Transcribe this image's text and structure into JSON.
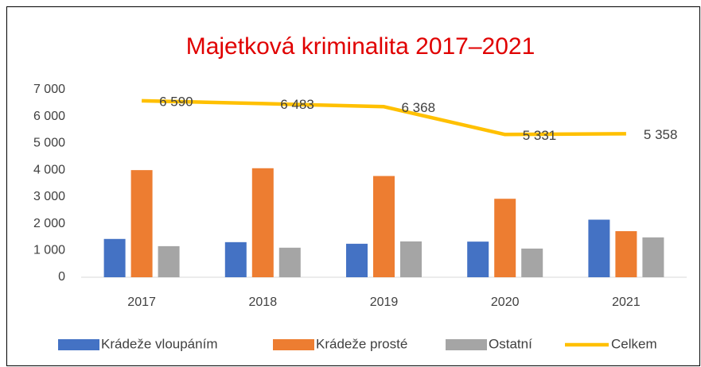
{
  "chart_data": {
    "type": "bar",
    "title": "Majetková kriminalita 2017–2021",
    "categories": [
      "2017",
      "2018",
      "2019",
      "2020",
      "2021"
    ],
    "series": [
      {
        "name": "Krádeže vloupáním",
        "color": "#4472c4",
        "values": [
          1430,
          1310,
          1250,
          1330,
          2150
        ]
      },
      {
        "name": "Krádeže prosté",
        "color": "#ed7d31",
        "values": [
          4000,
          4070,
          3780,
          2930,
          1720
        ]
      },
      {
        "name": "Ostatní",
        "color": "#a5a5a5",
        "values": [
          1160,
          1103,
          1338,
          1071,
          1488
        ]
      },
      {
        "name": "Celkem",
        "color": "#ffc000",
        "type": "line",
        "values": [
          6590,
          6483,
          6368,
          5331,
          5358
        ],
        "value_labels": [
          "6 590",
          "6 483",
          "6 368",
          "5 331",
          "5 358"
        ]
      }
    ],
    "ylim": [
      0,
      7000
    ],
    "yticks": [
      0,
      {
        "value": 1000,
        "label": "1 000"
      },
      {
        "value": 2000,
        "label": "2 000"
      },
      {
        "value": 3000,
        "label": "3 000"
      },
      {
        "value": 4000,
        "label": "4 000"
      },
      {
        "value": 5000,
        "label": "5 000"
      },
      {
        "value": 6000,
        "label": "6 000"
      },
      {
        "value": 7000,
        "label": "7 000"
      }
    ],
    "grid": false,
    "legend": "bottom"
  }
}
